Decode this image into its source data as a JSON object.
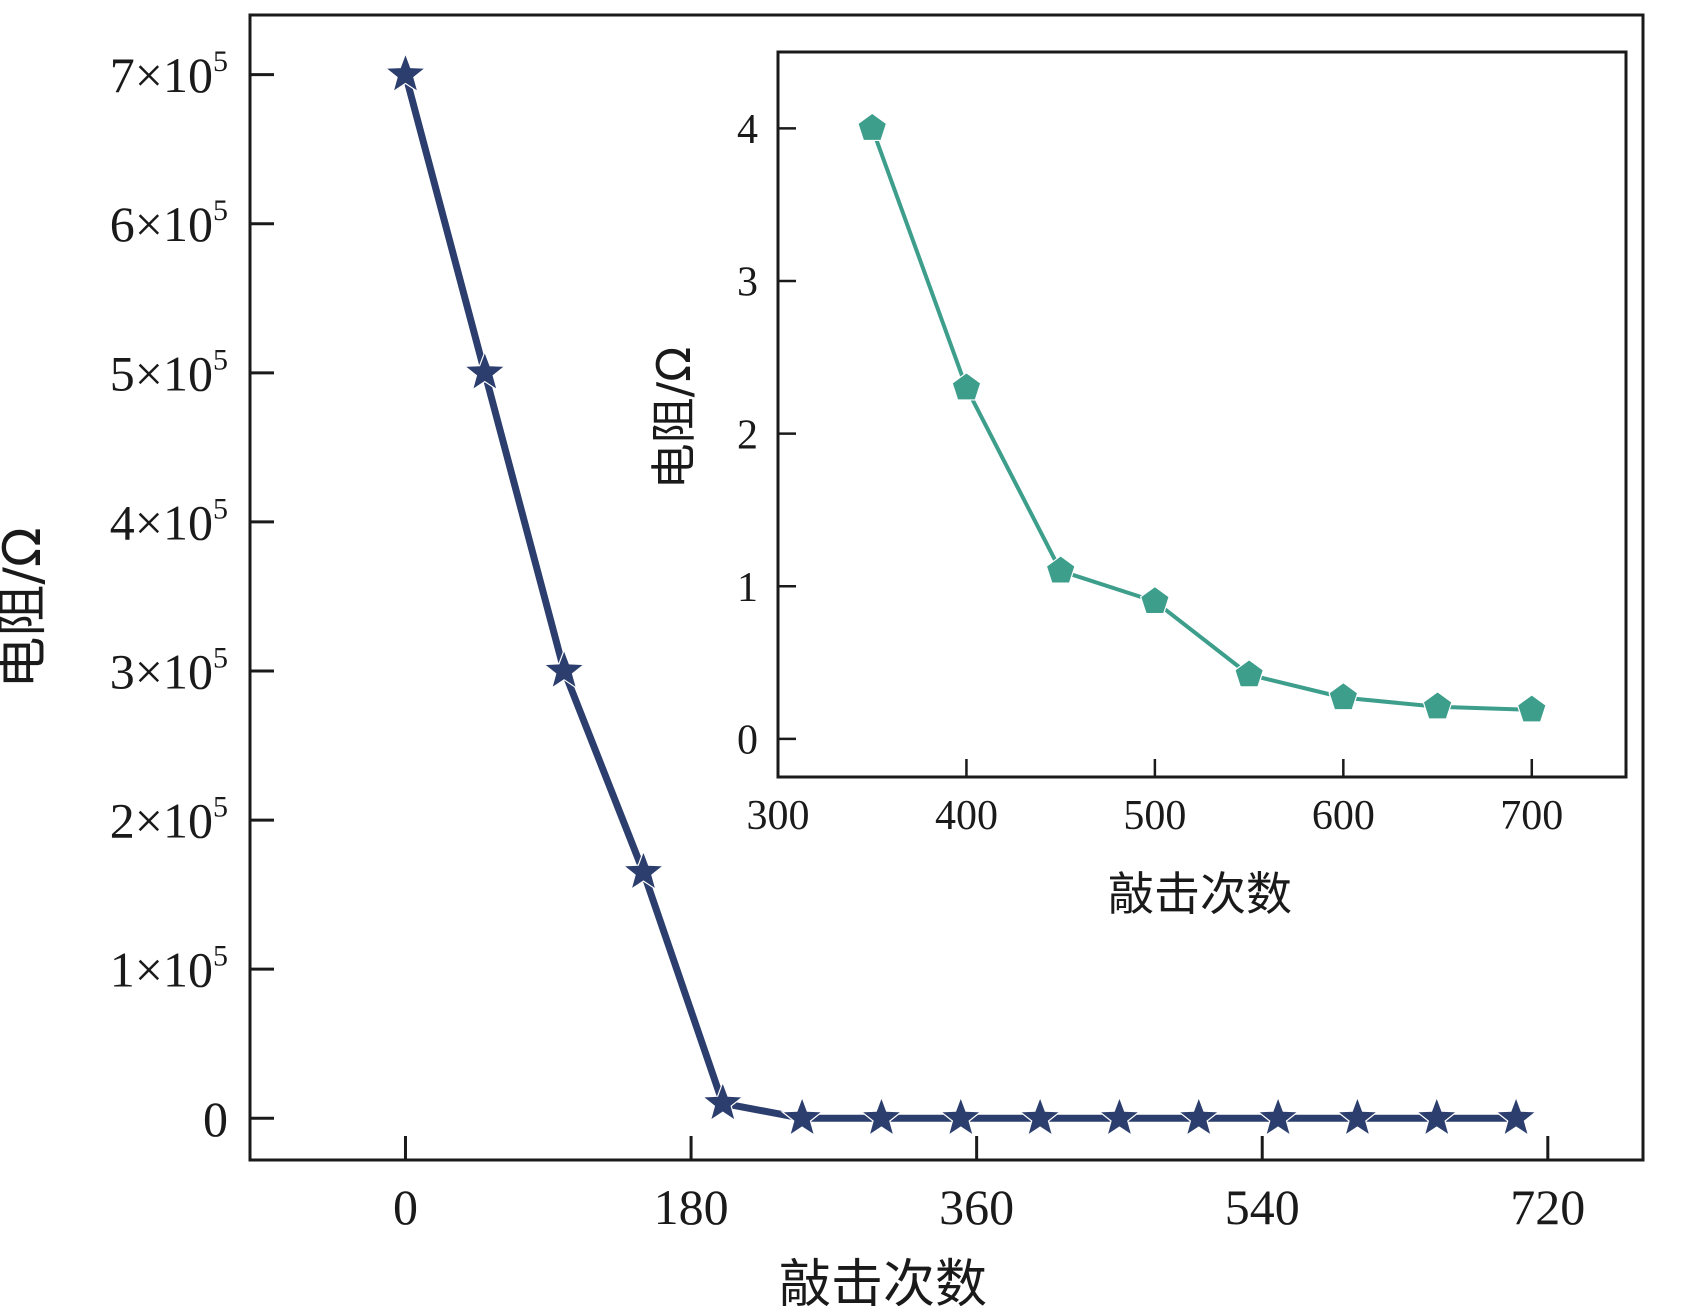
{
  "chart_data": [
    {
      "id": "main",
      "type": "line",
      "xlabel": "敲击次数",
      "ylabel": "电阻/Ω",
      "xlim": [
        -98,
        780
      ],
      "ylim": [
        -28000,
        740000
      ],
      "x_ticks": [
        0,
        180,
        360,
        540,
        720
      ],
      "x_tick_labels": [
        "0",
        "180",
        "360",
        "540",
        "720"
      ],
      "y_ticks": [
        0,
        100000,
        200000,
        300000,
        400000,
        500000,
        600000,
        700000
      ],
      "y_tick_labels": [
        {
          "mantissa": "0",
          "exponent": ""
        },
        {
          "mantissa": "1×10",
          "exponent": "5"
        },
        {
          "mantissa": "2×10",
          "exponent": "5"
        },
        {
          "mantissa": "3×10",
          "exponent": "5"
        },
        {
          "mantissa": "4×10",
          "exponent": "5"
        },
        {
          "mantissa": "5×10",
          "exponent": "5"
        },
        {
          "mantissa": "6×10",
          "exponent": "5"
        },
        {
          "mantissa": "7×10",
          "exponent": "5"
        }
      ],
      "marker": "star",
      "series": [
        {
          "name": "电阻",
          "color": "#2c3e6e",
          "x": [
            0,
            50,
            100,
            150,
            200,
            250,
            300,
            350,
            400,
            450,
            500,
            550,
            600,
            650,
            700
          ],
          "y": [
            700000,
            500000,
            300000,
            165000,
            10000,
            0,
            0,
            0,
            0,
            0,
            0,
            0,
            0,
            0,
            0
          ]
        }
      ]
    },
    {
      "id": "inset",
      "type": "line",
      "xlabel": "敲击次数",
      "ylabel": "电阻/Ω",
      "xlim": [
        300,
        750
      ],
      "ylim": [
        -0.25,
        4.5
      ],
      "x_ticks": [
        300,
        400,
        500,
        600,
        700
      ],
      "x_tick_labels": [
        "300",
        "400",
        "500",
        "600",
        "700"
      ],
      "y_ticks": [
        0,
        1,
        2,
        3,
        4
      ],
      "y_tick_labels": [
        "0",
        "1",
        "2",
        "3",
        "4"
      ],
      "marker": "pentagon",
      "series": [
        {
          "name": "电阻",
          "color": "#3d9e8c",
          "x": [
            350,
            400,
            450,
            500,
            550,
            600,
            650,
            700
          ],
          "y": [
            4.0,
            2.3,
            1.1,
            0.9,
            0.42,
            0.27,
            0.21,
            0.19
          ]
        }
      ]
    }
  ]
}
